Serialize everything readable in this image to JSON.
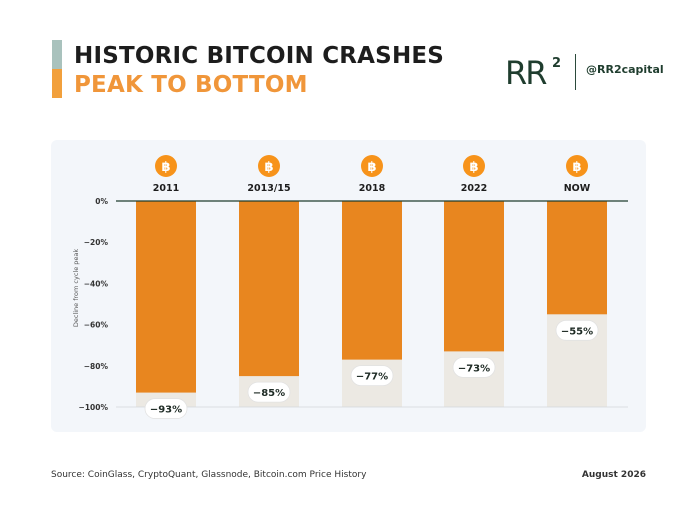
{
  "header": {
    "title_line1": "HISTORIC BITCOIN CRASHES",
    "title_line2": "PEAK TO BOTTOM",
    "logo_text": "RR",
    "logo_superscript": "2",
    "handle": "@RR2capital"
  },
  "footer": {
    "source": "Source: CoinGlass, CryptoQuant, Glassnode, Bitcoin.com Price History",
    "date": "August 2026"
  },
  "colors": {
    "bar": "#e8861f",
    "bar_track": "#ece9e3",
    "accent_orange": "#f2a03c",
    "accent_teal": "#a9c2bd",
    "brand_green": "#1f3d2e",
    "bitcoin_icon": "#f7931a"
  },
  "chart_data": {
    "type": "bar",
    "categories": [
      "2011",
      "2013/15",
      "2018",
      "2022",
      "NOW"
    ],
    "values": [
      -93,
      -85,
      -77,
      -73,
      -55
    ],
    "value_labels": [
      "−93%",
      "−85%",
      "−77%",
      "−73%",
      "−55%"
    ],
    "category_icon": "bitcoin-icon",
    "ylabel": "Decline from cycle peak",
    "ylim": [
      -100,
      0
    ],
    "yticks": [
      0,
      -20,
      -40,
      -60,
      -80,
      -100
    ],
    "ytick_labels": [
      "0%",
      "−20%",
      "−40%",
      "−60%",
      "−80%",
      "−100%"
    ],
    "grid": false,
    "legend": "none"
  }
}
